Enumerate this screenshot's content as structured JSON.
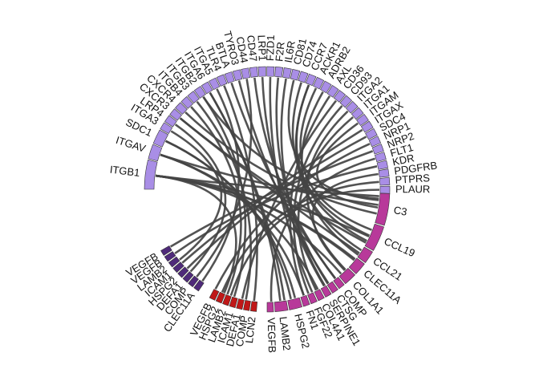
{
  "colors": {
    "receptor": "#a98ee6",
    "ligand_pink": "#b8399a",
    "ligand_purple": "#4f2a7a",
    "ligand_red": "#c01818",
    "ribbon": "#444444"
  },
  "chart_data": {
    "type": "chord",
    "title": "",
    "receptor_sectors": [
      {
        "name": "ITGB1",
        "weight": 4
      },
      {
        "name": "ITGAV",
        "weight": 2
      },
      {
        "name": "SDC1",
        "weight": 2
      },
      {
        "name": "ITGA3",
        "weight": 1
      },
      {
        "name": "LRP4",
        "weight": 1
      },
      {
        "name": "CXCR3",
        "weight": 1
      },
      {
        "name": "CXCR4",
        "weight": 1
      },
      {
        "name": "ITGB4",
        "weight": 1
      },
      {
        "name": "ITGB3",
        "weight": 1
      },
      {
        "name": "ITGB2",
        "weight": 1
      },
      {
        "name": "ITGA6",
        "weight": 1
      },
      {
        "name": "ITGA5",
        "weight": 1
      },
      {
        "name": "TLR4",
        "weight": 1
      },
      {
        "name": "BTLA",
        "weight": 1
      },
      {
        "name": "TYRO3",
        "weight": 1
      },
      {
        "name": "CD44",
        "weight": 1
      },
      {
        "name": "CD47",
        "weight": 1
      },
      {
        "name": "LRP1",
        "weight": 1
      },
      {
        "name": "FZD1",
        "weight": 1
      },
      {
        "name": "F2R",
        "weight": 1
      },
      {
        "name": "IL6R",
        "weight": 1
      },
      {
        "name": "CD81",
        "weight": 1
      },
      {
        "name": "CD74",
        "weight": 1
      },
      {
        "name": "CCR7",
        "weight": 1
      },
      {
        "name": "ACKR1",
        "weight": 1
      },
      {
        "name": "ADRB2",
        "weight": 1
      },
      {
        "name": "AXL",
        "weight": 1
      },
      {
        "name": "CD36",
        "weight": 1
      },
      {
        "name": "CD93",
        "weight": 1
      },
      {
        "name": "ITGA2",
        "weight": 1
      },
      {
        "name": "ITGA1",
        "weight": 1
      },
      {
        "name": "ITGAM",
        "weight": 1
      },
      {
        "name": "ITGAX",
        "weight": 1
      },
      {
        "name": "SDC4",
        "weight": 1
      },
      {
        "name": "NRP1",
        "weight": 1
      },
      {
        "name": "NRP2",
        "weight": 1
      },
      {
        "name": "FLT1",
        "weight": 1
      },
      {
        "name": "KDR",
        "weight": 1
      },
      {
        "name": "PDGFRB",
        "weight": 1
      },
      {
        "name": "PTPRS",
        "weight": 1
      },
      {
        "name": "PLAUR",
        "weight": 1
      }
    ],
    "ligand_sectors": [
      {
        "name": "C3",
        "weight": 5,
        "group": "pink"
      },
      {
        "name": "CCL19",
        "weight": 4,
        "group": "pink"
      },
      {
        "name": "CCL21",
        "weight": 2,
        "group": "pink"
      },
      {
        "name": "CLEC11A",
        "weight": 2,
        "group": "pink"
      },
      {
        "name": "COL1A1",
        "weight": 2,
        "group": "pink"
      },
      {
        "name": "COMP",
        "weight": 1,
        "group": "pink"
      },
      {
        "name": "CTSG",
        "weight": 1,
        "group": "pink"
      },
      {
        "name": "SERPINE1",
        "weight": 1,
        "group": "pink"
      },
      {
        "name": "COL4A1",
        "weight": 1,
        "group": "pink"
      },
      {
        "name": "FGF22",
        "weight": 1,
        "group": "pink"
      },
      {
        "name": "FN1",
        "weight": 1,
        "group": "pink"
      },
      {
        "name": "HSPG2",
        "weight": 2,
        "group": "pink"
      },
      {
        "name": "LAMB2",
        "weight": 2,
        "group": "pink"
      },
      {
        "name": "VEGFB",
        "weight": 1,
        "group": "pink"
      },
      {
        "name": "LCN2",
        "weight": 1,
        "group": "red"
      },
      {
        "name": "COMP",
        "weight": 1,
        "group": "red"
      },
      {
        "name": "DEFA1",
        "weight": 1,
        "group": "red"
      },
      {
        "name": "ICAM1",
        "weight": 1,
        "group": "red"
      },
      {
        "name": "LAMB2",
        "weight": 1,
        "group": "red"
      },
      {
        "name": "HSPG2",
        "weight": 1,
        "group": "red"
      },
      {
        "name": "VEGFB",
        "weight": 1,
        "group": "red"
      },
      {
        "name": "CLEC11A",
        "weight": 1,
        "group": "purple"
      },
      {
        "name": "COMP",
        "weight": 1,
        "group": "purple"
      },
      {
        "name": "DEFA1",
        "weight": 1,
        "group": "purple"
      },
      {
        "name": "HSPG2",
        "weight": 1,
        "group": "purple"
      },
      {
        "name": "ICAM1",
        "weight": 1,
        "group": "purple"
      },
      {
        "name": "LAMB2",
        "weight": 1,
        "group": "purple"
      },
      {
        "name": "VEGFB",
        "weight": 1,
        "group": "purple"
      },
      {
        "name": "VEGFB",
        "weight": 1,
        "group": "purple"
      }
    ],
    "links": [
      [
        "C3",
        "ITGB1"
      ],
      [
        "C3",
        "ITGAV"
      ],
      [
        "C3",
        "CXCR4"
      ],
      [
        "C3",
        "ITGB2"
      ],
      [
        "C3",
        "ITGAM"
      ],
      [
        "CCL19",
        "CCR7"
      ],
      [
        "CCL19",
        "ACKR1"
      ],
      [
        "CCL19",
        "ITGB1"
      ],
      [
        "CCL19",
        "CXCR3"
      ],
      [
        "CCL21",
        "CCR7"
      ],
      [
        "CCL21",
        "CXCR3"
      ],
      [
        "CLEC11A",
        "ITGB1"
      ],
      [
        "CLEC11A",
        "ITGA5"
      ],
      [
        "COL1A1",
        "ITGB1"
      ],
      [
        "COL1A1",
        "ITGA2"
      ],
      [
        "COMP",
        "CD47"
      ],
      [
        "CTSG",
        "F2R"
      ],
      [
        "SERPINE1",
        "LRP1"
      ],
      [
        "COL4A1",
        "ITGA1"
      ],
      [
        "FGF22",
        "FZD1"
      ],
      [
        "FN1",
        "ITGAV"
      ],
      [
        "HSPG2",
        "SDC1"
      ],
      [
        "HSPG2",
        "ITGB1"
      ],
      [
        "LAMB2",
        "ITGA6"
      ],
      [
        "LAMB2",
        "ITGB4"
      ],
      [
        "VEGFB",
        "FLT1"
      ],
      [
        "LCN2",
        "TLR4"
      ],
      [
        "COMP",
        "ITGB3"
      ],
      [
        "DEFA1",
        "CD36"
      ],
      [
        "ICAM1",
        "ITGB2"
      ],
      [
        "LAMB2",
        "ITGA3"
      ],
      [
        "HSPG2",
        "SDC4"
      ],
      [
        "VEGFB",
        "NRP1"
      ],
      [
        "CLEC11A",
        "ITGB1"
      ],
      [
        "COMP",
        "CD44"
      ],
      [
        "DEFA1",
        "LRP4"
      ],
      [
        "HSPG2",
        "SDC1"
      ],
      [
        "ICAM1",
        "ITGAX"
      ],
      [
        "LAMB2",
        "ITGA6"
      ],
      [
        "VEGFB",
        "KDR"
      ],
      [
        "VEGFB",
        "NRP2"
      ],
      [
        "C3",
        "CD81"
      ],
      [
        "CCL19",
        "CD74"
      ],
      [
        "CCL21",
        "ADRB2"
      ],
      [
        "COL1A1",
        "PDGFRB"
      ],
      [
        "HSPG2",
        "PTPRS"
      ],
      [
        "LAMB2",
        "PLAUR"
      ],
      [
        "FN1",
        "AXL"
      ],
      [
        "CTSG",
        "TYRO3"
      ],
      [
        "SERPINE1",
        "IL6R"
      ],
      [
        "COMP",
        "BTLA"
      ],
      [
        "FGF22",
        "CD93"
      ],
      [
        "COL4A1",
        "ITGAV"
      ]
    ],
    "legend": "none",
    "grid": false
  }
}
